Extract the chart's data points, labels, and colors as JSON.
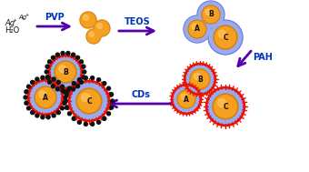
{
  "bg_color": "#ffffff",
  "orange_core": "#F5A020",
  "orange_dark": "#D08010",
  "blue_shell": "#7080D8",
  "blue_light": "#99AAEE",
  "red_ring": "#EE1100",
  "black_dot": "#111111",
  "arrow_color": "#5500AA",
  "label_color": "#0033BB",
  "text_color": "#111111",
  "arrow1_label": "PVP",
  "arrow2_label": "TEOS",
  "arrow3_label": "PAH",
  "arrow4_label": "CDs"
}
